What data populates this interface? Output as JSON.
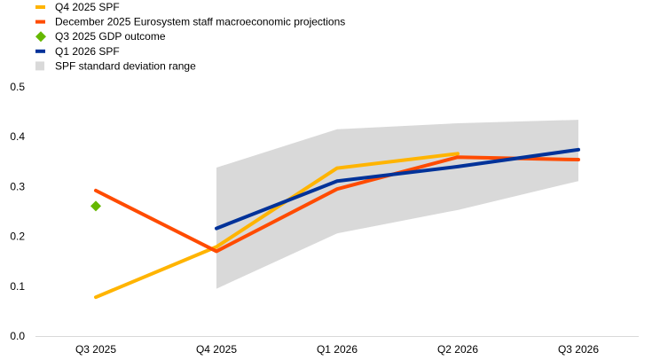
{
  "chart_data": {
    "type": "line",
    "categories": [
      "Q3 2025",
      "Q4 2025",
      "Q1 2026",
      "Q2 2026",
      "Q3 2026"
    ],
    "ylim": [
      0.0,
      0.5
    ],
    "yticks": [
      "0.0",
      "0.1",
      "0.2",
      "0.3",
      "0.4",
      "0.5"
    ],
    "grid": false,
    "legend_position": "top-left",
    "legend": [
      {
        "label": "Q4 2025 SPF",
        "marker": "line",
        "color": "#FFB400"
      },
      {
        "label": "December 2025 Eurosystem staff macroeconomic projections",
        "marker": "line",
        "color": "#FF4B00"
      },
      {
        "label": "Q3 2025 GDP outcome",
        "marker": "diamond",
        "color": "#65B800"
      },
      {
        "label": "Q1 2026 SPF",
        "marker": "line",
        "color": "#003299"
      },
      {
        "label": "SPF standard deviation range",
        "marker": "square",
        "color": "#D9D9D9"
      }
    ],
    "band": {
      "name": "SPF standard deviation range",
      "color": "#D9D9D9",
      "lower": [
        null,
        0.095,
        0.206,
        0.253,
        0.311
      ],
      "upper": [
        null,
        0.338,
        0.415,
        0.427,
        0.434
      ]
    },
    "series": [
      {
        "name": "Q4 2025 SPF",
        "color": "#FFB400",
        "values": [
          0.078,
          0.179,
          0.337,
          0.366,
          null
        ]
      },
      {
        "name": "December 2025 Eurosystem staff macroeconomic projections",
        "color": "#FF4B00",
        "values": [
          0.292,
          0.17,
          0.295,
          0.359,
          0.354
        ]
      },
      {
        "name": "Q1 2026 SPF",
        "color": "#003299",
        "values": [
          null,
          0.216,
          0.311,
          0.34,
          0.374
        ]
      }
    ],
    "points": [
      {
        "name": "Q3 2025 GDP outcome",
        "color": "#65B800",
        "category": "Q3 2025",
        "value": 0.261
      }
    ]
  }
}
